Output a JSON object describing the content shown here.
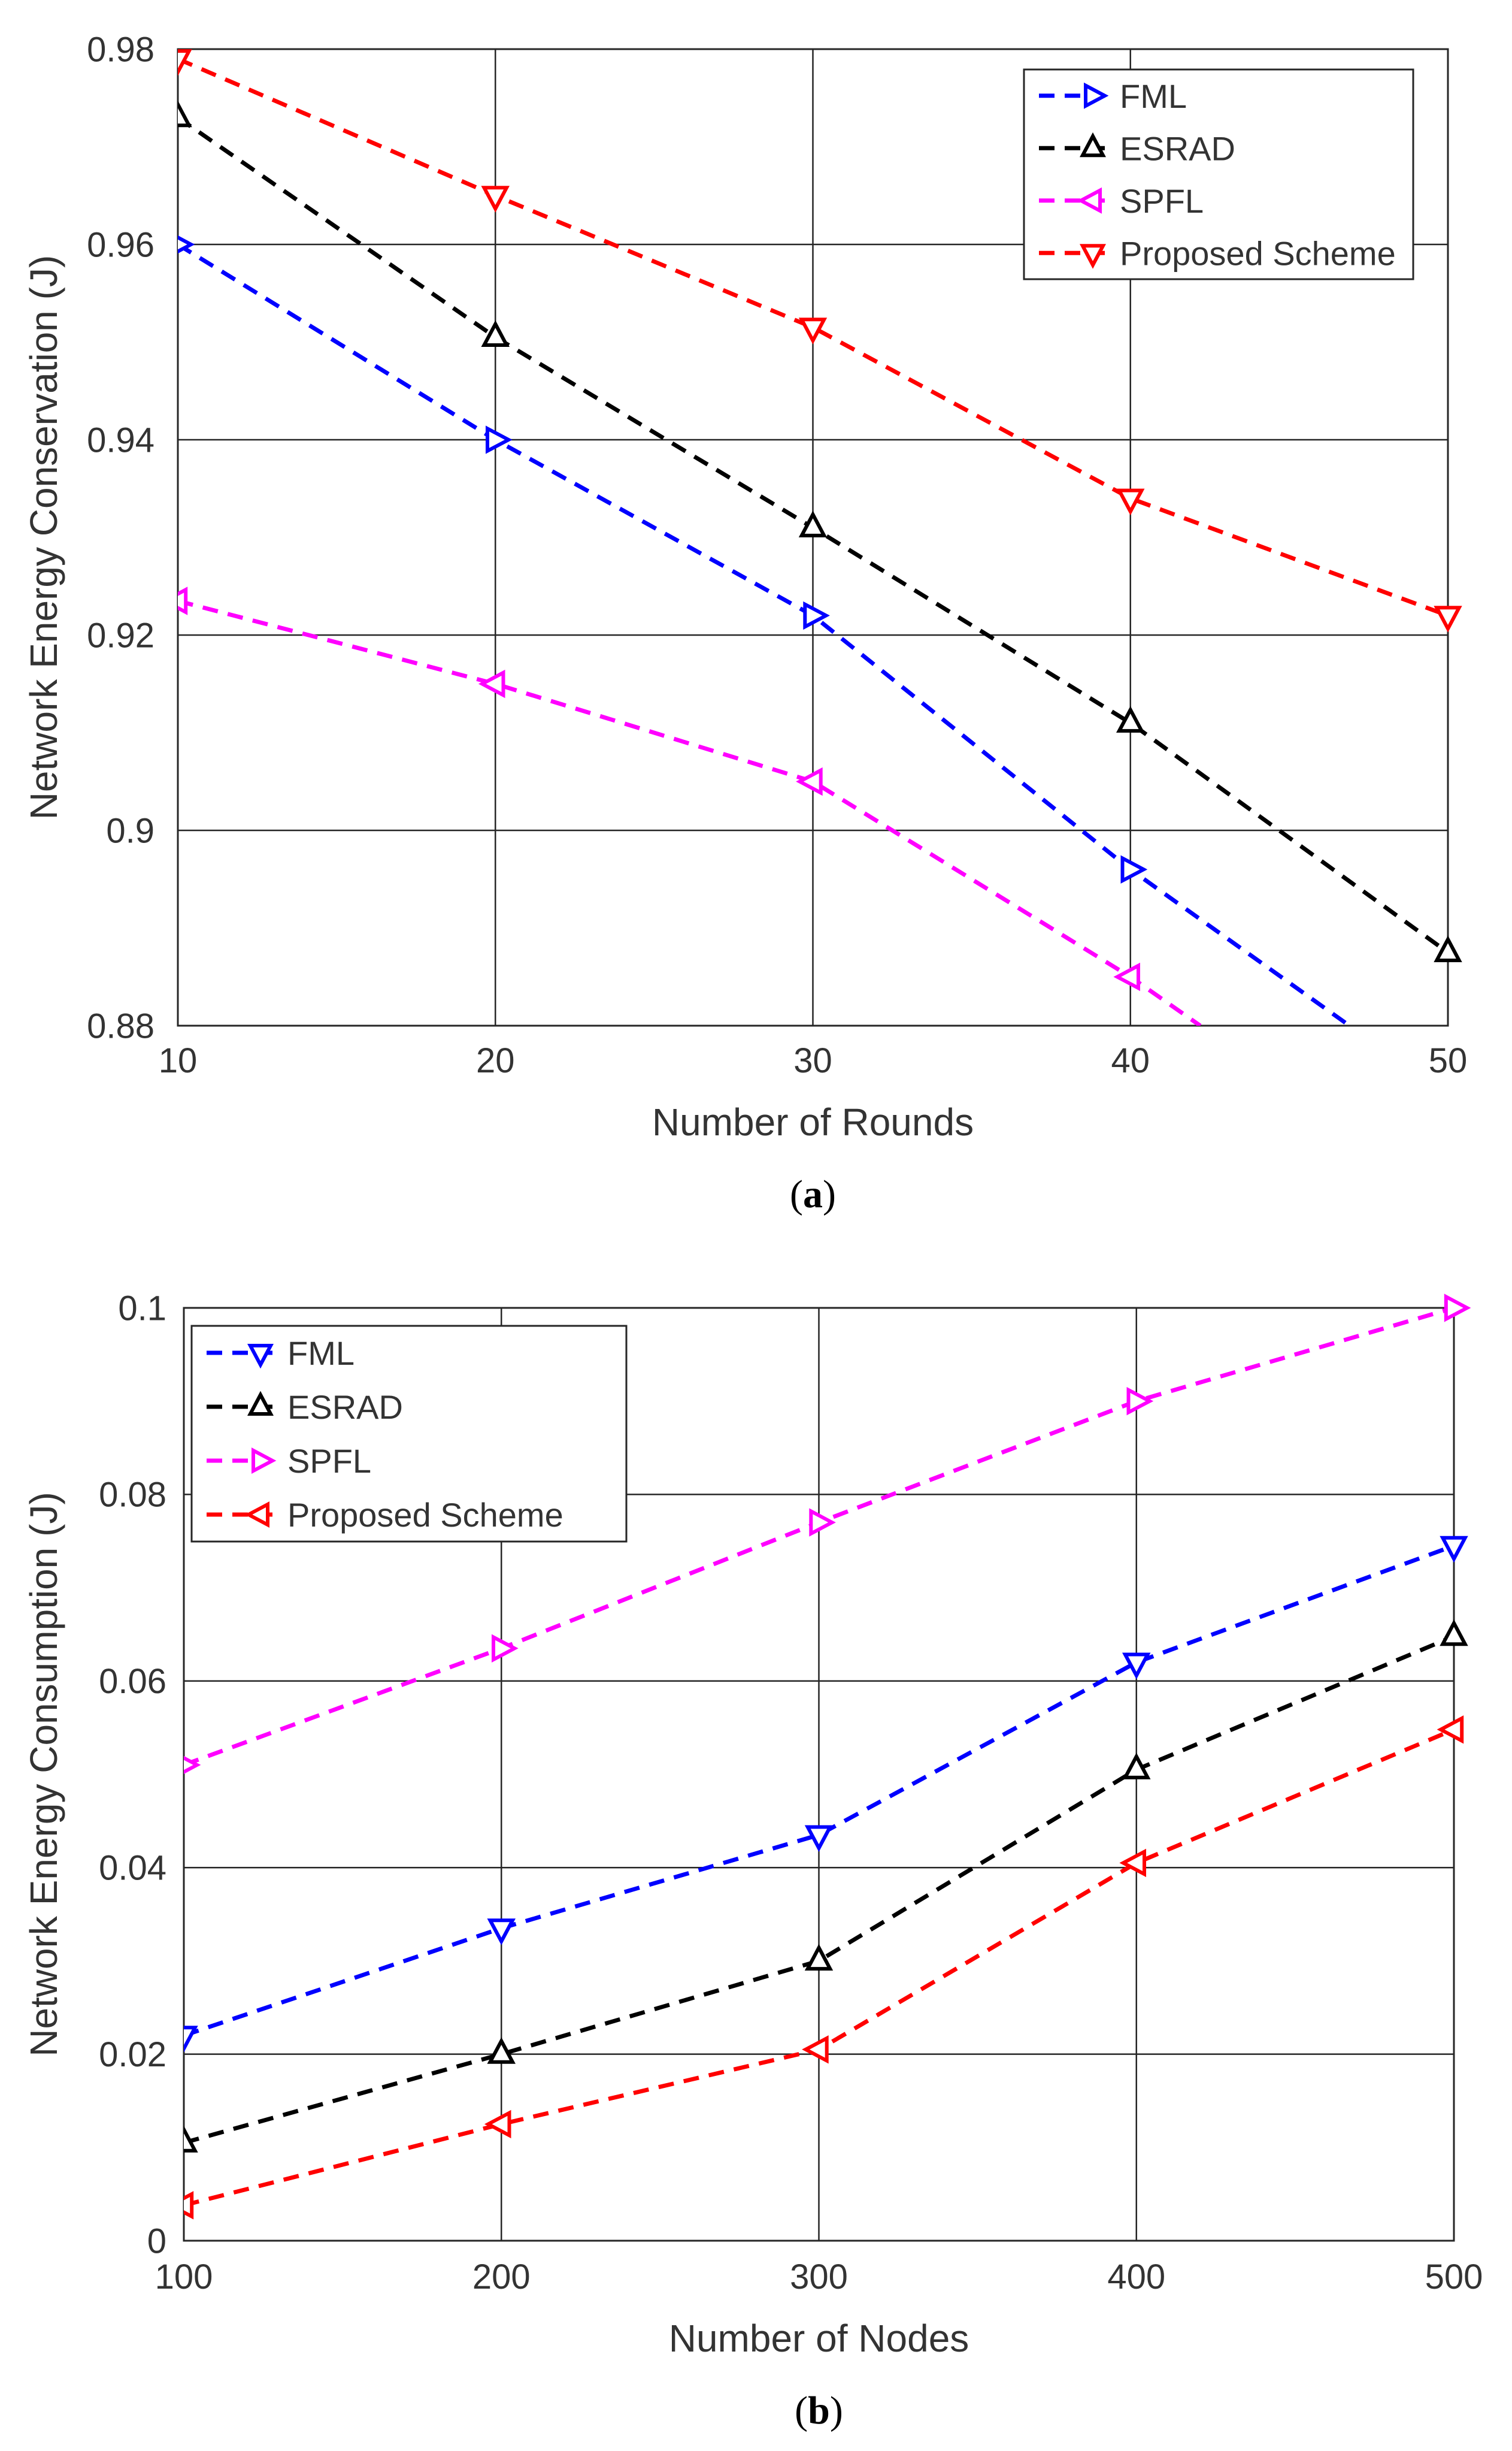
{
  "chart_data": [
    {
      "type": "line",
      "panel": "a",
      "caption_letter": "a",
      "caption_open": "(",
      "caption_close": ")",
      "xlabel": "Number of Rounds",
      "ylabel": "Network Energy Conservation (J)",
      "xlim": [
        10,
        50
      ],
      "ylim": [
        0.88,
        0.98
      ],
      "xticks": [
        10,
        20,
        30,
        40,
        50
      ],
      "xtick_labels": [
        "10",
        "20",
        "30",
        "40",
        "50"
      ],
      "yticks": [
        0.88,
        0.9,
        0.92,
        0.94,
        0.96,
        0.98
      ],
      "ytick_labels": [
        "0.88",
        "0.9",
        "0.92",
        "0.94",
        "0.96",
        "0.98"
      ],
      "grid": true,
      "legend_position": "top-right",
      "series": [
        {
          "name": "FML",
          "color": "#0000ff",
          "marker": "triangle-right",
          "x": [
            10,
            20,
            30,
            40,
            46.9
          ],
          "y": [
            0.96,
            0.94,
            0.922,
            0.896,
            0.88
          ],
          "marked": [
            true,
            true,
            true,
            true,
            false
          ]
        },
        {
          "name": "ESRAD",
          "color": "#000000",
          "marker": "triangle-up",
          "x": [
            10,
            20,
            30,
            40,
            50
          ],
          "y": [
            0.973,
            0.9505,
            0.931,
            0.911,
            0.8875
          ],
          "marked": [
            true,
            true,
            true,
            true,
            true
          ]
        },
        {
          "name": "SPFL",
          "color": "#ff00ff",
          "marker": "triangle-left",
          "x": [
            10,
            20,
            30,
            40,
            42.2
          ],
          "y": [
            0.9235,
            0.915,
            0.905,
            0.885,
            0.88
          ],
          "marked": [
            true,
            true,
            true,
            true,
            false
          ]
        },
        {
          "name": "Proposed Scheme",
          "color": "#ff0000",
          "marker": "triangle-down",
          "x": [
            10,
            20,
            30,
            40,
            50
          ],
          "y": [
            0.979,
            0.965,
            0.9515,
            0.934,
            0.922
          ],
          "marked": [
            true,
            true,
            true,
            true,
            true
          ]
        }
      ]
    },
    {
      "type": "line",
      "panel": "b",
      "caption_letter": "b",
      "caption_open": "(",
      "caption_close": ")",
      "xlabel": "Number of Nodes",
      "ylabel": "Network Energy Consumption (J)",
      "xlim": [
        100,
        500
      ],
      "ylim": [
        0,
        0.1
      ],
      "xticks": [
        100,
        200,
        300,
        400,
        500
      ],
      "xtick_labels": [
        "100",
        "200",
        "300",
        "400",
        "500"
      ],
      "yticks": [
        0,
        0.02,
        0.04,
        0.06,
        0.08,
        0.1
      ],
      "ytick_labels": [
        "0",
        "0.02",
        "0.04",
        "0.06",
        "0.08",
        "0.1"
      ],
      "grid": true,
      "legend_position": "top-left",
      "series": [
        {
          "name": "FML",
          "color": "#0000ff",
          "marker": "triangle-down",
          "x": [
            100,
            200,
            300,
            400,
            500
          ],
          "y": [
            0.022,
            0.0335,
            0.0435,
            0.062,
            0.0745
          ],
          "marked": [
            true,
            true,
            true,
            true,
            true
          ]
        },
        {
          "name": "ESRAD",
          "color": "#000000",
          "marker": "triangle-up",
          "x": [
            100,
            200,
            300,
            400,
            500
          ],
          "y": [
            0.0105,
            0.02,
            0.03,
            0.0505,
            0.0648
          ],
          "marked": [
            true,
            true,
            true,
            true,
            true
          ]
        },
        {
          "name": "SPFL",
          "color": "#ff00ff",
          "marker": "triangle-right",
          "x": [
            100,
            200,
            300,
            400,
            500
          ],
          "y": [
            0.051,
            0.0635,
            0.077,
            0.09,
            0.1
          ],
          "marked": [
            true,
            true,
            true,
            true,
            true
          ]
        },
        {
          "name": "Proposed Scheme",
          "color": "#ff0000",
          "marker": "triangle-left",
          "x": [
            100,
            200,
            300,
            400,
            500
          ],
          "y": [
            0.0038,
            0.0125,
            0.0205,
            0.0405,
            0.0548
          ],
          "marked": [
            true,
            true,
            true,
            true,
            true
          ]
        }
      ]
    }
  ]
}
